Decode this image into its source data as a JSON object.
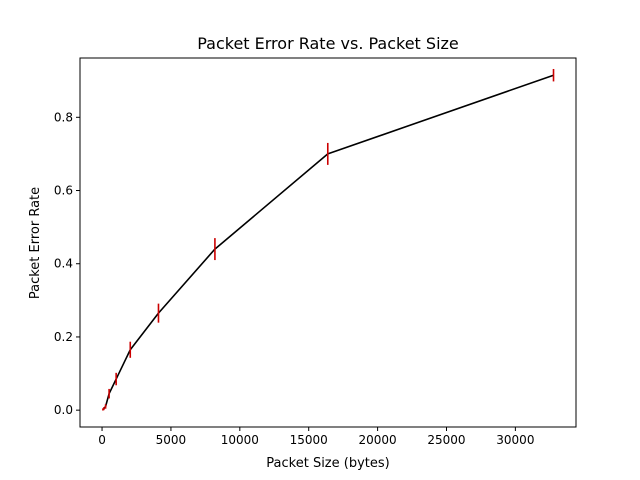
{
  "chart_data": {
    "type": "line",
    "title": "Packet Error Rate vs. Packet Size",
    "xlabel": "Packet Size (bytes)",
    "ylabel": "Packet Error Rate",
    "xlim": [
      -1600,
      34400
    ],
    "ylim": [
      -0.046,
      0.962
    ],
    "xticks": [
      0,
      5000,
      10000,
      15000,
      20000,
      25000,
      30000
    ],
    "yticks": [
      0.0,
      0.2,
      0.4,
      0.6,
      0.8
    ],
    "xtick_labels": [
      "0",
      "5000",
      "10000",
      "15000",
      "20000",
      "25000",
      "30000"
    ],
    "ytick_labels": [
      "0.0",
      "0.2",
      "0.4",
      "0.6",
      "0.8"
    ],
    "grid": false,
    "legend": "none",
    "series": [
      {
        "line_color": "#000000",
        "errorbar_color": "#cc0000",
        "x": [
          64,
          128,
          256,
          512,
          1024,
          2048,
          4096,
          8192,
          16384,
          32768
        ],
        "y": [
          0.002,
          0.004,
          0.01,
          0.045,
          0.085,
          0.165,
          0.265,
          0.44,
          0.7,
          0.915
        ],
        "yerr": [
          0.003,
          0.004,
          0.006,
          0.013,
          0.017,
          0.022,
          0.026,
          0.03,
          0.03,
          0.017
        ]
      }
    ]
  }
}
